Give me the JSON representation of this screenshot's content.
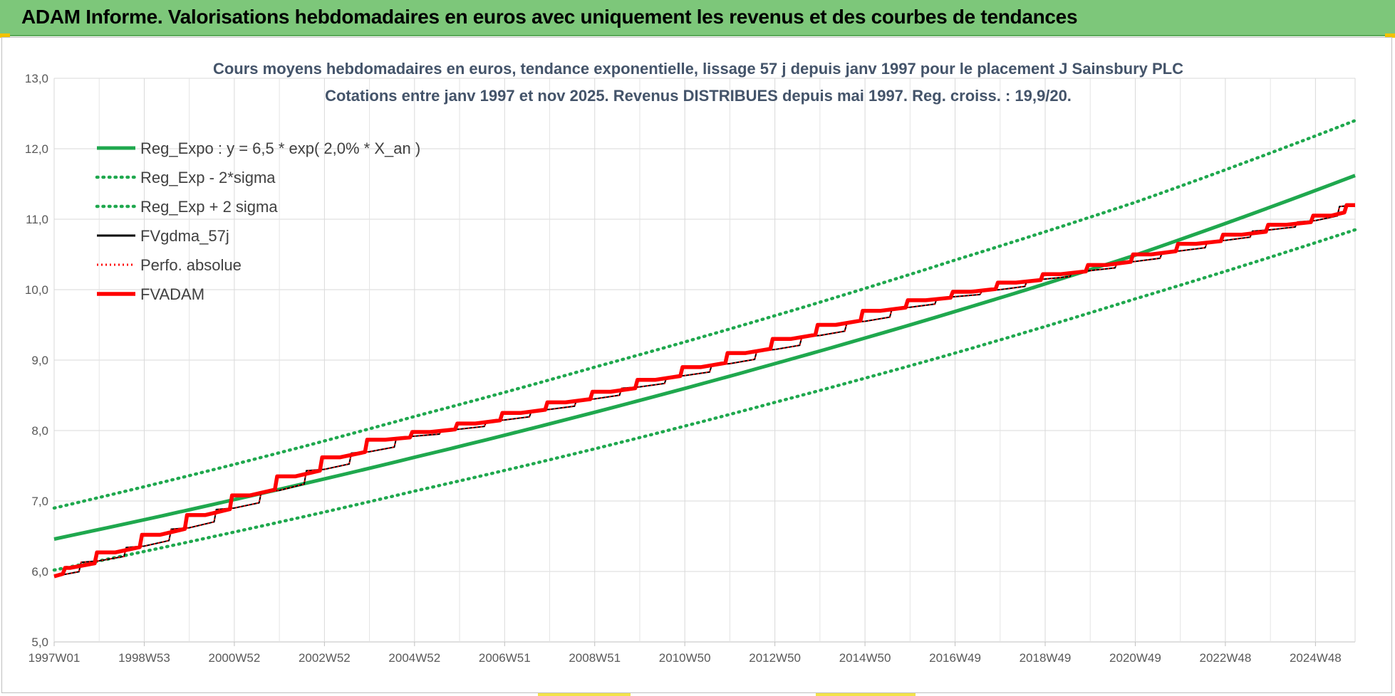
{
  "header": {
    "title": "ADAM Informe. Valorisations hebdomadaires en euros avec uniquement les revenus et des courbes de tendances"
  },
  "colors": {
    "banner": "#7dc77a",
    "trend": "#1fa84e",
    "price": "#000000",
    "adam": "#ff0000",
    "grid": "#d9d9d9",
    "title": "#44546a"
  },
  "chart_data": {
    "type": "line",
    "title_line1": "Cours moyens hebdomadaires en euros, tendance exponentielle, lissage 57 j depuis janv 1997  pour le placement J Sainsbury PLC",
    "title_line2": "Cotations entre janv 1997 et nov 2025. Revenus DISTRIBUES depuis mai 1997.  Reg. croiss. : 19,9/20.",
    "xlabel": "",
    "ylabel": "",
    "ylim": [
      5.0,
      13.0
    ],
    "xlim": [
      1997.0,
      2025.88
    ],
    "y_ticks": [
      "5,0",
      "6,0",
      "7,0",
      "8,0",
      "9,0",
      "10,0",
      "11,0",
      "12,0",
      "13,0"
    ],
    "x_tick_labels": [
      "1997W01",
      "1998W53",
      "2000W52",
      "2002W52",
      "2004W52",
      "2006W51",
      "2008W51",
      "2010W50",
      "2012W50",
      "2014W50",
      "2016W49",
      "2018W49",
      "2020W49",
      "2022W48",
      "2024W48"
    ],
    "x_tick_years": [
      1997.0,
      1999.0,
      2001.0,
      2003.0,
      2005.0,
      2007.0,
      2009.0,
      2011.0,
      2013.0,
      2015.0,
      2017.0,
      2019.0,
      2021.0,
      2023.0,
      2025.0
    ],
    "grid": true,
    "legend_position": "top-left",
    "series": [
      {
        "name": "Reg_Expo : y = 6,5 * exp( 2,0% *  X_an )",
        "style": "solid",
        "color": "#1fa84e",
        "x": [
          1997.0,
          2001.0,
          2005.0,
          2009.0,
          2013.0,
          2017.0,
          2021.0,
          2025.88
        ],
        "y": [
          6.46,
          7.02,
          7.62,
          8.26,
          8.95,
          9.69,
          10.49,
          11.62
        ]
      },
      {
        "name": "Reg_Exp - 2*sigma",
        "style": "dotted",
        "color": "#1fa84e",
        "x": [
          1997.0,
          2001.0,
          2005.0,
          2009.0,
          2013.0,
          2017.0,
          2021.0,
          2025.88
        ],
        "y": [
          6.02,
          6.56,
          7.14,
          7.74,
          8.4,
          9.1,
          9.87,
          10.85
        ]
      },
      {
        "name": "Reg_Exp + 2 sigma",
        "style": "dotted",
        "color": "#1fa84e",
        "x": [
          1997.0,
          2001.0,
          2005.0,
          2009.0,
          2013.0,
          2017.0,
          2021.0,
          2025.88
        ],
        "y": [
          6.9,
          7.52,
          8.2,
          8.9,
          9.63,
          10.42,
          11.24,
          12.4
        ]
      },
      {
        "name": "FVgdma_57j",
        "style": "thin",
        "color": "#000000",
        "x": [
          1997.0,
          1998.0,
          1999.0,
          2000.0,
          2001.0,
          2002.0,
          2003.0,
          2004.0,
          2005.0,
          2006.0,
          2007.0,
          2008.0,
          2009.0,
          2010.0,
          2011.0,
          2012.0,
          2013.0,
          2014.0,
          2015.0,
          2016.0,
          2017.0,
          2018.0,
          2019.0,
          2020.0,
          2021.0,
          2022.0,
          2023.0,
          2024.0,
          2025.0,
          2025.88
        ],
        "y": [
          5.93,
          6.15,
          6.36,
          6.62,
          6.9,
          7.15,
          7.45,
          7.7,
          7.92,
          8.02,
          8.15,
          8.3,
          8.45,
          8.62,
          8.78,
          8.95,
          9.15,
          9.35,
          9.55,
          9.75,
          9.9,
          10.0,
          10.15,
          10.27,
          10.4,
          10.55,
          10.7,
          10.85,
          10.98,
          11.2
        ]
      },
      {
        "name": "Perfo. absolue",
        "style": "dotted",
        "color": "#ff0000",
        "x": [
          1997.0,
          1998.0,
          1999.0,
          2000.0,
          2001.0,
          2002.0,
          2003.0,
          2004.0,
          2005.0,
          2006.0,
          2007.0,
          2008.0,
          2009.0,
          2010.0,
          2011.0,
          2012.0,
          2013.0,
          2014.0,
          2015.0,
          2016.0,
          2017.0,
          2018.0,
          2019.0,
          2020.0,
          2021.0,
          2022.0,
          2023.0,
          2024.0,
          2025.0,
          2025.88
        ],
        "y": [
          5.93,
          6.15,
          6.36,
          6.62,
          6.9,
          7.15,
          7.45,
          7.7,
          7.92,
          8.02,
          8.15,
          8.3,
          8.45,
          8.62,
          8.78,
          8.95,
          9.15,
          9.35,
          9.55,
          9.75,
          9.9,
          10.0,
          10.15,
          10.27,
          10.4,
          10.55,
          10.7,
          10.85,
          10.98,
          11.2
        ]
      },
      {
        "name": "FVADAM",
        "style": "thick",
        "color": "#ff0000",
        "x": [
          1997.0,
          1997.35,
          1998.35,
          1999.35,
          2000.35,
          2001.35,
          2002.35,
          2003.35,
          2004.35,
          2005.35,
          2006.35,
          2007.35,
          2008.35,
          2009.35,
          2010.35,
          2011.35,
          2012.35,
          2013.35,
          2014.35,
          2015.35,
          2016.35,
          2017.35,
          2018.35,
          2019.35,
          2020.35,
          2021.35,
          2022.35,
          2023.35,
          2024.35,
          2025.35,
          2025.88
        ],
        "y": [
          5.93,
          6.05,
          6.27,
          6.52,
          6.8,
          7.08,
          7.35,
          7.62,
          7.87,
          7.98,
          8.1,
          8.25,
          8.4,
          8.55,
          8.72,
          8.9,
          9.1,
          9.3,
          9.5,
          9.7,
          9.85,
          9.97,
          10.1,
          10.22,
          10.35,
          10.5,
          10.65,
          10.78,
          10.92,
          11.05,
          11.2
        ]
      }
    ]
  }
}
